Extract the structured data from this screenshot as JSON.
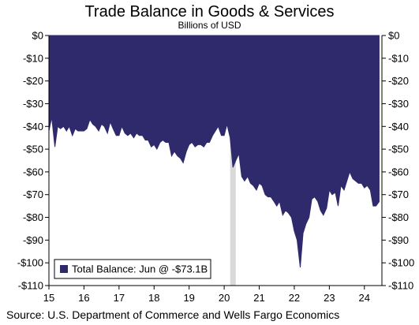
{
  "title": "Trade Balance in Goods & Services",
  "subtitle": "Billions of USD",
  "source": "Source: U.S. Department of Commerce and Wells Fargo Economics",
  "colors": {
    "area": "#2e2a6b",
    "recession": "#d9d9d9",
    "axis": "#000000"
  },
  "chart_data": {
    "type": "area",
    "title": "Trade Balance in Goods & Services",
    "subtitle": "Billions of USD",
    "xlabel": "",
    "ylabel": "",
    "xlim": [
      2015.0,
      2024.5
    ],
    "ylim": [
      -110,
      0
    ],
    "y_ticks": [
      0,
      -10,
      -20,
      -30,
      -40,
      -50,
      -60,
      -70,
      -80,
      -90,
      -100,
      -110
    ],
    "y_tick_labels": [
      "$0",
      "-$10",
      "-$20",
      "-$30",
      "-$40",
      "-$50",
      "-$60",
      "-$70",
      "-$80",
      "-$90",
      "-$100",
      "-$110"
    ],
    "x_ticks": [
      2015,
      2016,
      2017,
      2018,
      2019,
      2020,
      2021,
      2022,
      2023,
      2024
    ],
    "x_tick_labels": [
      "15",
      "16",
      "17",
      "18",
      "19",
      "20",
      "21",
      "22",
      "23",
      "24"
    ],
    "grid": false,
    "legend": {
      "placement": "bottom-left",
      "entries": [
        "Total Balance: Jun @ -$73.1B"
      ]
    },
    "recession_band": [
      2020.17,
      2020.33
    ],
    "series": [
      {
        "name": "Total Balance: Jun @ -$73.1B",
        "x": [
          2015.0,
          2015.08,
          2015.17,
          2015.25,
          2015.33,
          2015.42,
          2015.5,
          2015.58,
          2015.67,
          2015.75,
          2015.83,
          2015.92,
          2016.0,
          2016.08,
          2016.17,
          2016.25,
          2016.33,
          2016.42,
          2016.5,
          2016.58,
          2016.67,
          2016.75,
          2016.83,
          2016.92,
          2017.0,
          2017.08,
          2017.17,
          2017.25,
          2017.33,
          2017.42,
          2017.5,
          2017.58,
          2017.67,
          2017.75,
          2017.83,
          2017.92,
          2018.0,
          2018.08,
          2018.17,
          2018.25,
          2018.33,
          2018.42,
          2018.5,
          2018.58,
          2018.67,
          2018.75,
          2018.83,
          2018.92,
          2019.0,
          2019.08,
          2019.17,
          2019.25,
          2019.33,
          2019.42,
          2019.5,
          2019.58,
          2019.67,
          2019.75,
          2019.83,
          2019.92,
          2020.0,
          2020.08,
          2020.17,
          2020.25,
          2020.33,
          2020.42,
          2020.5,
          2020.58,
          2020.67,
          2020.75,
          2020.83,
          2020.92,
          2021.0,
          2021.08,
          2021.17,
          2021.25,
          2021.33,
          2021.42,
          2021.5,
          2021.58,
          2021.67,
          2021.75,
          2021.83,
          2021.92,
          2022.0,
          2022.08,
          2022.17,
          2022.25,
          2022.33,
          2022.42,
          2022.5,
          2022.58,
          2022.67,
          2022.75,
          2022.83,
          2022.92,
          2023.0,
          2023.08,
          2023.17,
          2023.25,
          2023.33,
          2023.42,
          2023.5,
          2023.58,
          2023.67,
          2023.75,
          2023.83,
          2023.92,
          2024.0,
          2024.08,
          2024.17,
          2024.25,
          2024.33,
          2024.42
        ],
        "values": [
          -42,
          -36,
          -49,
          -40,
          -41,
          -40,
          -42,
          -40,
          -44,
          -41,
          -42,
          -42,
          -42,
          -41,
          -37,
          -39,
          -40,
          -42,
          -39,
          -40,
          -43,
          -38,
          -41,
          -44,
          -44,
          -40,
          -43,
          -44,
          -43,
          -45,
          -43,
          -44,
          -44,
          -46,
          -46,
          -49,
          -48,
          -50,
          -47,
          -46,
          -47,
          -47,
          -53,
          -51,
          -53,
          -54,
          -56,
          -51,
          -48,
          -47,
          -49,
          -48,
          -48,
          -49,
          -47,
          -47,
          -44,
          -42,
          -40,
          -44,
          -44,
          -39,
          -45,
          -58,
          -55,
          -52,
          -62,
          -64,
          -62,
          -65,
          -66,
          -68,
          -65,
          -66,
          -70,
          -71,
          -71,
          -73,
          -75,
          -73,
          -79,
          -77,
          -78,
          -80,
          -86,
          -90,
          -102,
          -87,
          -83,
          -80,
          -72,
          -71,
          -73,
          -77,
          -79,
          -76,
          -68,
          -70,
          -69,
          -75,
          -66,
          -68,
          -64,
          -60,
          -63,
          -64,
          -65,
          -65,
          -67,
          -66,
          -68,
          -75,
          -75,
          -73.1
        ]
      }
    ]
  }
}
